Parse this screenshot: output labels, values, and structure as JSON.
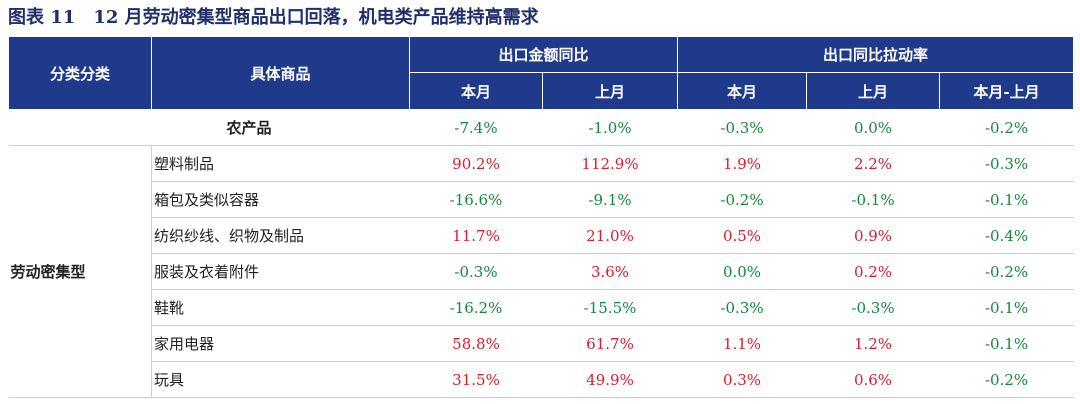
{
  "title": {
    "figure_no": "图表 11",
    "text": "12 月劳动密集型商品出口回落，机电类产品维持高需求"
  },
  "header": {
    "category": "分类分类",
    "item": "具体商品",
    "group_export_yoy": "出口金额同比",
    "group_contribution": "出口同比拉动率",
    "this_month": "本月",
    "last_month": "上月",
    "this_month_2": "本月",
    "last_month_2": "上月",
    "diff": "本月-上月"
  },
  "colors": {
    "header_bg": "#1f3a8a",
    "positive": "#e0192b",
    "negative": "#128a3a"
  },
  "agri": {
    "label": "农产品",
    "values": [
      "-7.4%",
      "-1.0%",
      "-0.3%",
      "0.0%",
      "-0.2%"
    ]
  },
  "labor_group": "劳动密集型",
  "labor_rows": [
    {
      "item": "塑料制品",
      "values": [
        "90.2%",
        "112.9%",
        "1.9%",
        "2.2%",
        "-0.3%"
      ]
    },
    {
      "item": "箱包及类似容器",
      "values": [
        "-16.6%",
        "-9.1%",
        "-0.2%",
        "-0.1%",
        "-0.1%"
      ]
    },
    {
      "item": "纺织纱线、织物及制品",
      "values": [
        "11.7%",
        "21.0%",
        "0.5%",
        "0.9%",
        "-0.4%"
      ]
    },
    {
      "item": "服装及衣着附件",
      "values": [
        "-0.3%",
        "3.6%",
        "0.0%",
        "0.2%",
        "-0.2%"
      ]
    },
    {
      "item": "鞋靴",
      "values": [
        "-16.2%",
        "-15.5%",
        "-0.3%",
        "-0.3%",
        "-0.1%"
      ]
    },
    {
      "item": "家用电器",
      "values": [
        "58.8%",
        "61.7%",
        "1.1%",
        "1.2%",
        "-0.1%"
      ]
    },
    {
      "item": "玩具",
      "values": [
        "31.5%",
        "49.9%",
        "0.3%",
        "0.6%",
        "-0.2%"
      ]
    }
  ]
}
